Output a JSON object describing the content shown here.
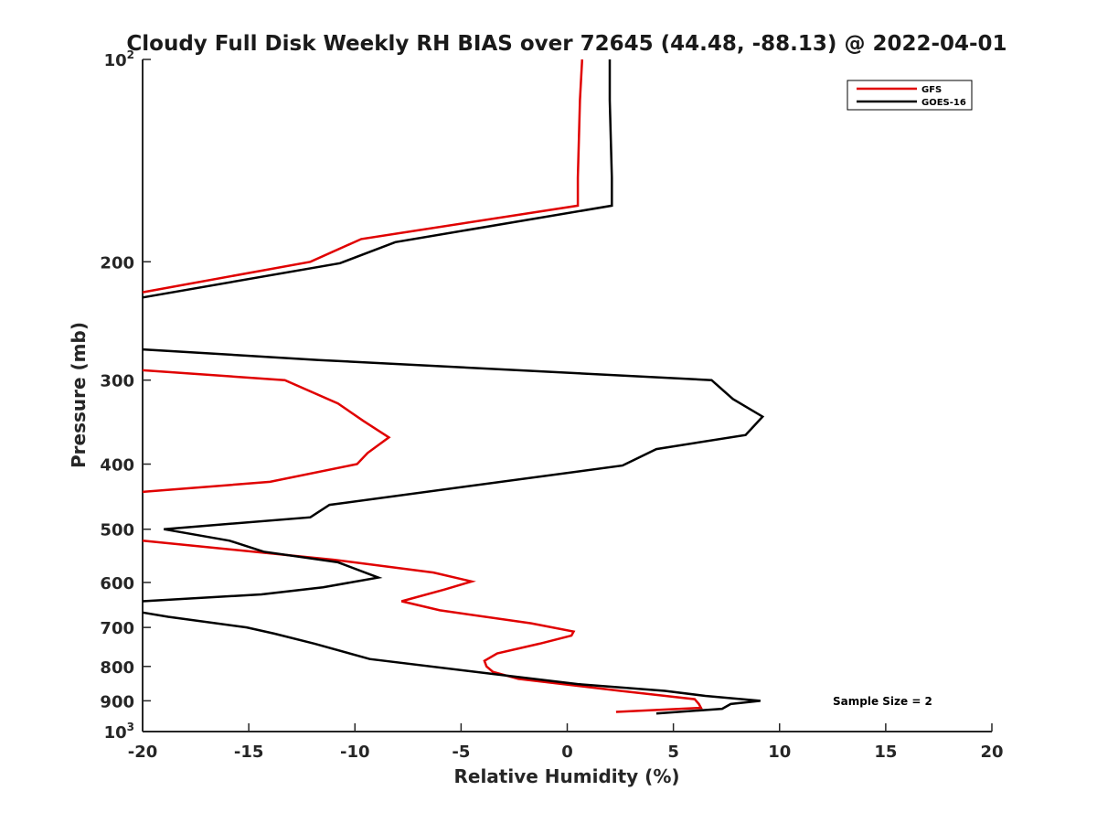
{
  "chart_data": {
    "type": "line",
    "title": "Cloudy Full Disk Weekly RH BIAS over 72645 (44.48, -88.13) @ 2022-04-01",
    "xlabel": "Relative Humidity (%)",
    "ylabel": "Pressure (mb)",
    "xlim": [
      -20,
      20
    ],
    "ylim": [
      100,
      1000
    ],
    "y_scale": "log",
    "y_reversed": true,
    "x_ticks": [
      "-20",
      "-15",
      "-10",
      "-5",
      "0",
      "5",
      "10",
      "15",
      "20"
    ],
    "y_ticks": [
      {
        "value": 100,
        "base": "10",
        "exp": "2"
      },
      {
        "value": 200,
        "label": "200"
      },
      {
        "value": 300,
        "label": "300"
      },
      {
        "value": 400,
        "label": "400"
      },
      {
        "value": 500,
        "label": "500"
      },
      {
        "value": 600,
        "label": "600"
      },
      {
        "value": 700,
        "label": "700"
      },
      {
        "value": 800,
        "label": "800"
      },
      {
        "value": 900,
        "label": "900"
      },
      {
        "value": 1000,
        "base": "10",
        "exp": "3"
      }
    ],
    "grid": false,
    "legend_position": "top-right",
    "series": [
      {
        "name": "GFS",
        "color": "#e00000",
        "segments": [
          [
            [
              0.7,
              100
            ],
            [
              0.6,
              115
            ],
            [
              0.5,
              150
            ],
            [
              0.5,
              165
            ],
            [
              -9.7,
              185
            ],
            [
              -12.1,
              200
            ],
            [
              -20,
              222
            ]
          ],
          [
            [
              -20,
              290
            ],
            [
              -13.3,
              300
            ],
            [
              -10.8,
              325
            ],
            [
              -9.6,
              345
            ],
            [
              -8.4,
              365
            ],
            [
              -9.4,
              385
            ],
            [
              -9.9,
              400
            ],
            [
              -14,
              425
            ],
            [
              -20,
              440
            ]
          ],
          [
            [
              -20,
              520
            ],
            [
              -11,
              555
            ],
            [
              -6.3,
              580
            ],
            [
              -4.5,
              598
            ],
            [
              -5.8,
              615
            ],
            [
              -7.8,
              640
            ],
            [
              -6,
              660
            ],
            [
              -1.7,
              690
            ],
            [
              0.3,
              710
            ],
            [
              0.2,
              720
            ],
            [
              -1.3,
              740
            ],
            [
              -3.3,
              765
            ],
            [
              -3.9,
              785
            ],
            [
              -3.8,
              800
            ],
            [
              -3.5,
              815
            ],
            [
              -2.3,
              835
            ],
            [
              2.5,
              870
            ],
            [
              6,
              895
            ],
            [
              6.2,
              910
            ],
            [
              6.3,
              922
            ],
            [
              2.3,
              935
            ]
          ]
        ]
      },
      {
        "name": "GOES-16",
        "color": "#000000",
        "segments": [
          [
            [
              2.0,
              100
            ],
            [
              2.0,
              115
            ],
            [
              2.1,
              150
            ],
            [
              2.1,
              165
            ],
            [
              -8.1,
              187
            ],
            [
              -10.7,
              201
            ],
            [
              -20,
              226
            ]
          ],
          [
            [
              -20,
              270
            ],
            [
              -11.7,
              280
            ],
            [
              6.8,
              300
            ],
            [
              7.8,
              320
            ],
            [
              9.2,
              340
            ],
            [
              8.4,
              362
            ],
            [
              4.2,
              380
            ],
            [
              2.6,
              402
            ],
            [
              -11.2,
              460
            ],
            [
              -12.1,
              480
            ],
            [
              -19,
              500
            ],
            [
              -15.9,
              520
            ],
            [
              -14.3,
              540
            ],
            [
              -10.8,
              560
            ],
            [
              -8.9,
              590
            ],
            [
              -11.5,
              610
            ],
            [
              -14.4,
              625
            ],
            [
              -20,
              640
            ]
          ],
          [
            [
              -20,
              665
            ],
            [
              -18.8,
              675
            ],
            [
              -15.1,
              700
            ],
            [
              -13.8,
              715
            ],
            [
              -11.9,
              740
            ],
            [
              -9.3,
              780
            ],
            [
              -3.6,
              820
            ],
            [
              0.5,
              850
            ],
            [
              4.6,
              870
            ],
            [
              6.5,
              885
            ],
            [
              9.1,
              900
            ],
            [
              7.7,
              910
            ],
            [
              7.3,
              925
            ],
            [
              4.2,
              940
            ]
          ]
        ]
      }
    ],
    "annotation": "Sample Size = 2"
  }
}
